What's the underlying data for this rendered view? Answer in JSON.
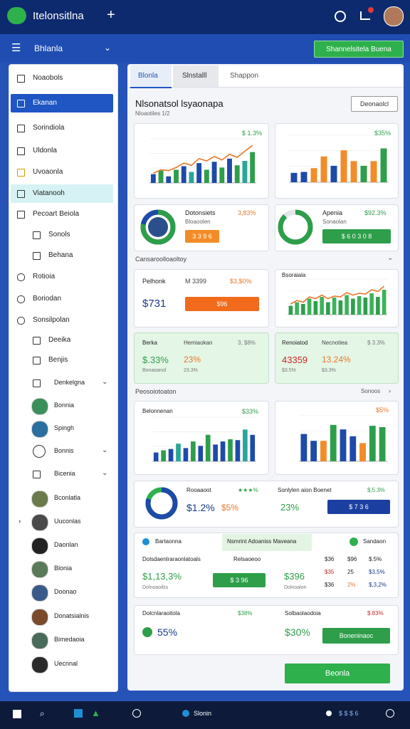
{
  "topbar": {
    "title": "Itelonsitlna"
  },
  "subbar": {
    "menu": "Bhlanla",
    "button": "Shannelsitela Buena"
  },
  "sidebar": {
    "items": [
      "Noaobols",
      "Ekanan",
      "Sorindiola",
      "Uldonla",
      "Uvoaonla",
      "Viatanooh",
      "Pecoart Beiola",
      "Sonols",
      "Behana",
      "Rotioia",
      "Boriodan",
      "Sonsilpolan",
      "Deeika",
      "Benjis",
      "Denkelgna",
      "Bonnia",
      "Spingh",
      "Bonnis",
      "Bicenia",
      "Bconlatla",
      "Uuconlas",
      "Daonlan",
      "Blonia",
      "Doonao",
      "Donatsialnis",
      "Bimedaoia",
      "Uecnnal"
    ]
  },
  "tabs": [
    "Blonla",
    "Slnstalll",
    "Shappon"
  ],
  "header": {
    "title": "Nlsonatsol lsyaonapa",
    "subtitle": "Nloaotiles 1/2",
    "button": "Deonaolcl"
  },
  "charts": [
    {
      "type": "bar",
      "label": "$ 1.3%",
      "ylim": [
        0,
        100
      ],
      "values": [
        20,
        28,
        15,
        30,
        38,
        25,
        45,
        30,
        48,
        35,
        55,
        40,
        50,
        70
      ],
      "colors": [
        "#1e4aa8",
        "#2e9e4a",
        "#1e4aa8",
        "#2e9e4a",
        "#1e4aa8",
        "#2aa59a",
        "#1e4aa8",
        "#2e9e4a",
        "#1e4aa8",
        "#2e9e4a",
        "#1e4aa8",
        "#2e9e4a",
        "#2aa59a",
        "#2e9e4a"
      ],
      "line": [
        22,
        30,
        28,
        35,
        45,
        40,
        55,
        50,
        60,
        52,
        65,
        58,
        72,
        85
      ],
      "line_color": "#e8782a"
    },
    {
      "type": "bar",
      "label": "$35%",
      "ylim": [
        0,
        100
      ],
      "values": [
        20,
        22,
        30,
        55,
        35,
        68,
        45,
        35,
        45,
        72
      ],
      "colors": [
        "#1e4aa8",
        "#1e4aa8",
        "#f28c28",
        "#f28c28",
        "#1e4aa8",
        "#f28c28",
        "#f28c28",
        "#2e9e4a",
        "#f28c28",
        "#2e9e4a"
      ]
    },
    {
      "type": "bar",
      "title": "Bsoraiala",
      "ylim": [
        0,
        100
      ],
      "values": [
        25,
        35,
        30,
        45,
        38,
        50,
        35,
        48,
        40,
        55,
        45,
        52,
        48,
        60,
        50,
        70
      ],
      "colors": [
        "#2e9e4a",
        "#3bb35a",
        "#2e9e4a",
        "#3bb35a",
        "#2e9e4a",
        "#3bb35a",
        "#2e9e4a",
        "#3bb35a",
        "#2e9e4a",
        "#3bb35a",
        "#2e9e4a",
        "#3bb35a",
        "#2e9e4a",
        "#3bb35a",
        "#2e9e4a",
        "#3bb35a"
      ],
      "line": [
        30,
        40,
        35,
        50,
        45,
        55,
        45,
        52,
        50,
        62,
        55,
        60,
        58,
        70,
        65,
        80
      ],
      "line_color": "#e8782a"
    },
    {
      "type": "bar",
      "title": "Belonnenan",
      "label": "$33%",
      "ylim": [
        0,
        100
      ],
      "values": [
        20,
        25,
        28,
        40,
        30,
        45,
        35,
        60,
        38,
        45,
        50,
        48,
        72,
        60
      ],
      "colors": [
        "#1e4aa8",
        "#2e9e4a",
        "#1e4aa8",
        "#2aa59a",
        "#1e4aa8",
        "#2e9e4a",
        "#1e4aa8",
        "#2e9e4a",
        "#1e4aa8",
        "#1e4aa8",
        "#2e9e4a",
        "#1e4aa8",
        "#2aa59a",
        "#1e4aa8"
      ]
    },
    {
      "type": "bar",
      "label": "$5%",
      "ylim": [
        0,
        100
      ],
      "values": [
        60,
        45,
        45,
        80,
        70,
        55,
        40,
        78,
        75
      ],
      "colors": [
        "#1e4aa8",
        "#1e4aa8",
        "#f28c28",
        "#2e9e4a",
        "#1e4aa8",
        "#1e4aa8",
        "#f28c28",
        "#2e9e4a",
        "#2e9e4a"
      ]
    }
  ],
  "donut_cards": [
    {
      "value": 78,
      "title": "Dotonsiets",
      "stat": "3,83%",
      "sub": "Bloaoolen",
      "button": "3 3 9 6"
    },
    {
      "value": 88,
      "title": "Apenia",
      "stat": "$92.3%",
      "sub": "Sonaolan",
      "button": "$ 6 0 3 0 8"
    }
  ],
  "section1": "Cansaroolloaoltoy",
  "kpi_card": {
    "title": "Pelhonk",
    "sub": "M 3399",
    "stat": "$3,$0%",
    "value": "$731",
    "button": "$96"
  },
  "green_cards": [
    {
      "title": "Berka",
      "sub": "Hemiaokan",
      "stat": "3, $8%",
      "big1": "$.33%",
      "big2": "23%",
      "small1": "Bonaoanol",
      "small2": "23.3%"
    },
    {
      "title": "Renoiatod",
      "sub": "Necnotiea",
      "stat": "$ 3.3%",
      "big1": "43359",
      "big2": "13.24%",
      "small1": "$3.5%",
      "small2": "$3.3%"
    }
  ],
  "section2": {
    "title": "Peosoiotoaton",
    "link": "Sonoos"
  },
  "donut_row": {
    "value": 80,
    "title": "Rooaaoot",
    "stars": "★★★%",
    "big1": "$1.2%",
    "big2": "$5%",
    "title2": "Sonlylen aion Boenet",
    "stat2": "$,5.3%",
    "big3": "23%",
    "button": "$ 7 3 6"
  },
  "table": {
    "header": [
      "Bartaonna",
      "Nsmrint Adoaniss Maveana",
      "Sandaon"
    ],
    "columns": [
      "Dolsdaenlraraonlatoals",
      "Relsaoeoo",
      "$36",
      "$96",
      "$.5%"
    ],
    "row1": [
      "$1,13,3%",
      "$ 3 96",
      "$396",
      "$35",
      "25",
      "$3,5%"
    ],
    "row2": [
      "Dolnoaoilss",
      "Dolnoalon",
      "$36",
      "2%",
      "$,3,2%"
    ]
  },
  "bottom_card": {
    "title": "Dolcnlaraoitola",
    "stat": "$38%",
    "big": "55%",
    "title2": "Solbaolaodoia",
    "stat2": "$.83%",
    "big2": "$30%",
    "button": "Boneninaoc"
  },
  "footer_button": "Beonla",
  "taskbar": {
    "app": "Slonin",
    "status": "$ $ $ 6"
  }
}
